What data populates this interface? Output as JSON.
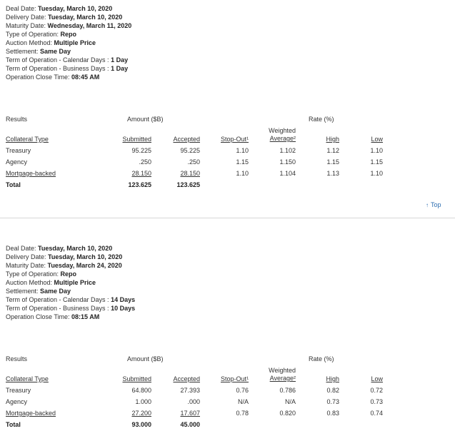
{
  "top_link": {
    "arrow": "↑",
    "label": "Top"
  },
  "operations": [
    {
      "info": [
        {
          "label": "Deal Date: ",
          "value": "Tuesday, March 10, 2020"
        },
        {
          "label": "Delivery Date: ",
          "value": "Tuesday, March 10, 2020"
        },
        {
          "label": "Maturity Date: ",
          "value": "Wednesday, March 11, 2020"
        },
        {
          "label": "Type of Operation: ",
          "value": "Repo"
        },
        {
          "label": "Auction Method: ",
          "value": "Multiple Price"
        },
        {
          "label": "Settlement: ",
          "value": "Same Day"
        },
        {
          "label": "Term of Operation - Calendar Days : ",
          "value": "1 Day"
        },
        {
          "label": "Term of Operation - Business Days : ",
          "value": "1 Day"
        },
        {
          "label": "Operation Close Time: ",
          "value": "08:45 AM"
        }
      ],
      "table": {
        "results_label": "Results",
        "amount_label": "Amount ($B)",
        "rate_label": "Rate (%)",
        "weighted_1": "Weighted",
        "weighted_2": "Average²",
        "headers": {
          "collateral": "Collateral Type",
          "submitted": "Submitted",
          "accepted": "Accepted",
          "stopout": "Stop-Out¹",
          "high": "High",
          "low": "Low"
        },
        "rows": [
          {
            "type": "Treasury",
            "submitted": "95.225",
            "accepted": "95.225",
            "stopout": "1.10",
            "wavg": "1.102",
            "high": "1.12",
            "low": "1.10"
          },
          {
            "type": "Agency",
            "submitted": ".250",
            "accepted": ".250",
            "stopout": "1.15",
            "wavg": "1.150",
            "high": "1.15",
            "low": "1.15"
          },
          {
            "type": "Mortgage-backed",
            "submitted": "28.150",
            "accepted": "28.150",
            "stopout": "1.10",
            "wavg": "1.104",
            "high": "1.13",
            "low": "1.10"
          }
        ],
        "total": {
          "label": "Total",
          "submitted": "123.625",
          "accepted": "123.625"
        }
      }
    },
    {
      "info": [
        {
          "label": "Deal Date: ",
          "value": "Tuesday, March 10, 2020"
        },
        {
          "label": "Delivery Date: ",
          "value": "Tuesday, March 10, 2020"
        },
        {
          "label": "Maturity Date: ",
          "value": "Tuesday, March 24, 2020"
        },
        {
          "label": "Type of Operation: ",
          "value": "Repo"
        },
        {
          "label": "Auction Method: ",
          "value": "Multiple Price"
        },
        {
          "label": "Settlement: ",
          "value": "Same Day"
        },
        {
          "label": "Term of Operation - Calendar Days : ",
          "value": "14 Days"
        },
        {
          "label": "Term of Operation - Business Days : ",
          "value": "10 Days"
        },
        {
          "label": "Operation Close Time: ",
          "value": "08:15 AM"
        }
      ],
      "table": {
        "results_label": "Results",
        "amount_label": "Amount ($B)",
        "rate_label": "Rate (%)",
        "weighted_1": "Weighted",
        "weighted_2": "Average²",
        "headers": {
          "collateral": "Collateral Type",
          "submitted": "Submitted",
          "accepted": "Accepted",
          "stopout": "Stop-Out¹",
          "high": "High",
          "low": "Low"
        },
        "rows": [
          {
            "type": "Treasury",
            "submitted": "64.800",
            "accepted": "27.393",
            "stopout": "0.76",
            "wavg": "0.786",
            "high": "0.82",
            "low": "0.72"
          },
          {
            "type": "Agency",
            "submitted": "1.000",
            "accepted": ".000",
            "stopout": "N/A",
            "wavg": "N/A",
            "high": "0.73",
            "low": "0.73"
          },
          {
            "type": "Mortgage-backed",
            "submitted": "27.200",
            "accepted": "17.607",
            "stopout": "0.78",
            "wavg": "0.820",
            "high": "0.83",
            "low": "0.74"
          }
        ],
        "total": {
          "label": "Total",
          "submitted": "93.000",
          "accepted": "45.000"
        }
      }
    }
  ]
}
